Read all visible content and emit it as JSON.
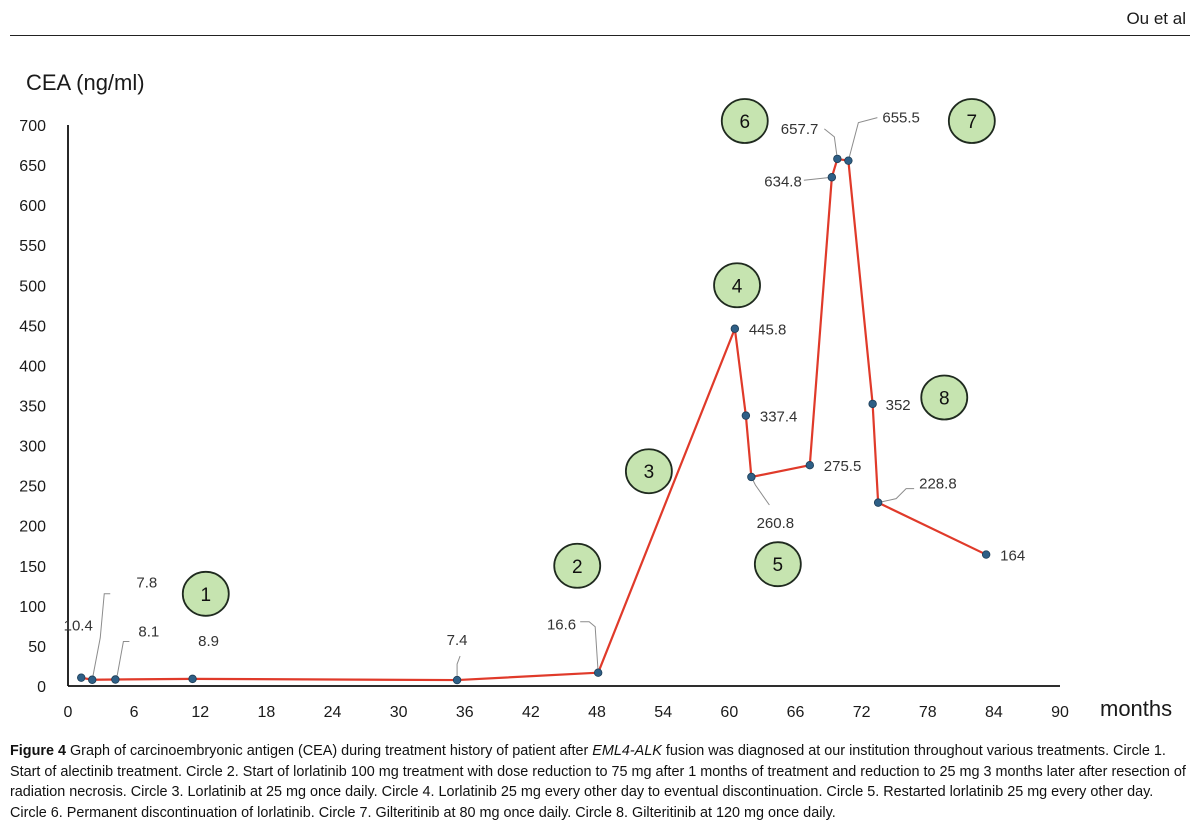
{
  "header": {
    "author": "Ou et al"
  },
  "chart_data": {
    "type": "line",
    "title": "",
    "ylabel": "CEA (ng/ml)",
    "xlabel": "months",
    "xlim": [
      0,
      90
    ],
    "ylim": [
      0,
      700
    ],
    "xticks": [
      0,
      6,
      12,
      18,
      24,
      30,
      36,
      42,
      48,
      54,
      60,
      66,
      72,
      78,
      84,
      90
    ],
    "yticks": [
      0,
      50,
      100,
      150,
      200,
      250,
      300,
      350,
      400,
      450,
      500,
      550,
      600,
      650,
      700
    ],
    "grid": false,
    "line_color": "#e03a2a",
    "marker_color": "#2e5f86",
    "series": [
      {
        "name": "CEA",
        "points": [
          {
            "x": 1.2,
            "y": 10.4,
            "label": "10.4"
          },
          {
            "x": 2.2,
            "y": 7.8,
            "label": "7.8"
          },
          {
            "x": 4.3,
            "y": 8.1,
            "label": "8.1"
          },
          {
            "x": 11.3,
            "y": 8.9,
            "label": "8.9"
          },
          {
            "x": 35.3,
            "y": 7.4,
            "label": "7.4"
          },
          {
            "x": 48.1,
            "y": 16.6,
            "label": "16.6"
          },
          {
            "x": 60.5,
            "y": 445.8,
            "label": "445.8"
          },
          {
            "x": 61.5,
            "y": 337.4,
            "label": "337.4"
          },
          {
            "x": 62.0,
            "y": 260.8,
            "label": "260.8"
          },
          {
            "x": 67.3,
            "y": 275.5,
            "label": "275.5"
          },
          {
            "x": 69.3,
            "y": 634.8,
            "label": "634.8"
          },
          {
            "x": 69.8,
            "y": 657.7,
            "label": "657.7"
          },
          {
            "x": 70.8,
            "y": 655.5,
            "label": "655.5"
          },
          {
            "x": 73.0,
            "y": 352,
            "label": "352"
          },
          {
            "x": 73.5,
            "y": 228.8,
            "label": "228.8"
          },
          {
            "x": 83.3,
            "y": 164,
            "label": "164"
          }
        ]
      }
    ],
    "annotations": [
      {
        "text": "1",
        "x": 12.5,
        "y": 115
      },
      {
        "text": "2",
        "x": 46.2,
        "y": 150
      },
      {
        "text": "3",
        "x": 52.7,
        "y": 268
      },
      {
        "text": "4",
        "x": 60.7,
        "y": 500
      },
      {
        "text": "5",
        "x": 64.4,
        "y": 152
      },
      {
        "text": "6",
        "x": 61.4,
        "y": 705
      },
      {
        "text": "7",
        "x": 82.0,
        "y": 705
      },
      {
        "text": "8",
        "x": 79.5,
        "y": 360
      }
    ],
    "circle_fill": "#c6e4b0",
    "circle_stroke": "#1f2a1f"
  },
  "caption": {
    "figure_label": "Figure 4",
    "text_before_italic": " Graph of carcinoembryonic antigen (CEA) during treatment history of patient after ",
    "italic": "EML4-ALK",
    "text_after_italic": " fusion was diagnosed at our institution throughout various treatments. Circle 1. Start of alectinib treatment. Circle 2. Start of lorlatinib 100 mg treatment with dose reduction to 75 mg after 1 months of treatment and reduction to 25 mg 3 months later after resection of radiation necrosis. Circle 3. Lorlatinib at 25 mg once daily. Circle 4. Lorlatinib 25 mg every other day to eventual discontinuation. Circle 5. Restarted lorlatinib 25 mg every other day. Circle 6. Permanent discontinuation of lorlatinib. Circle 7. Gilteritinib at 80 mg once daily. Circle 8. Gilteritinib at 120 mg once daily."
  }
}
